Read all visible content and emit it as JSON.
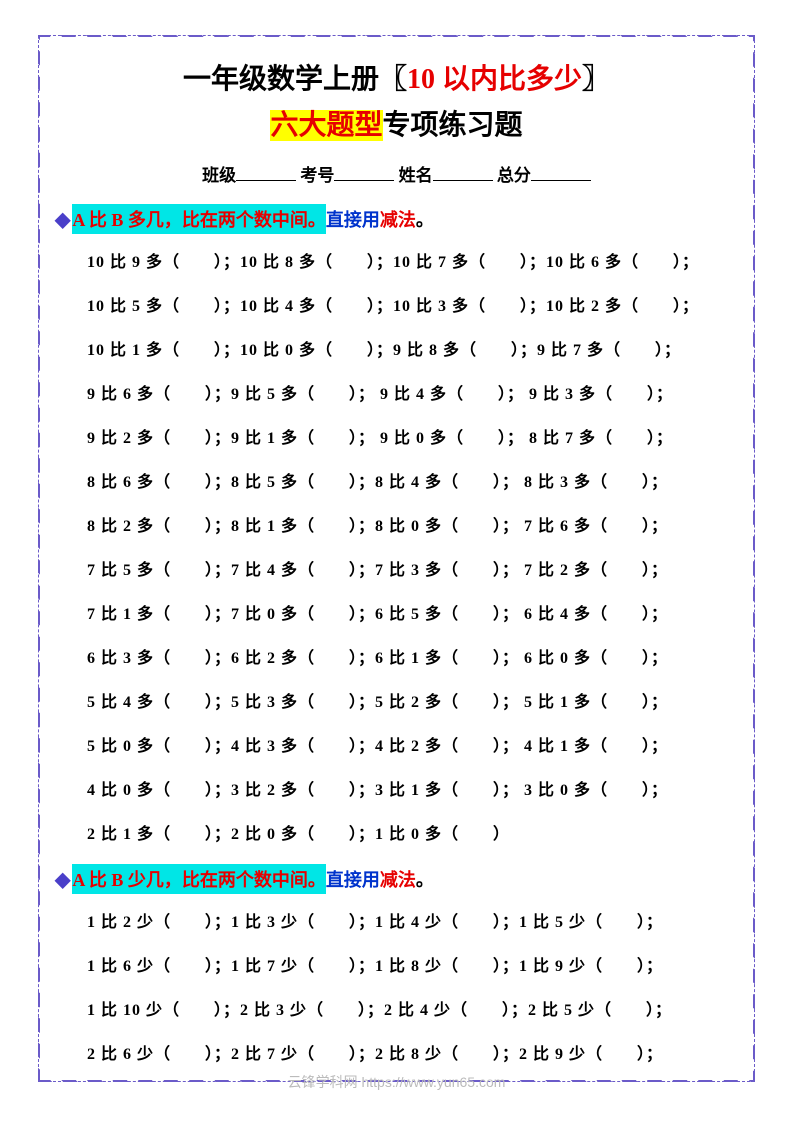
{
  "title": {
    "prefix": "一年级数学上册〖",
    "highlight_red": "10 以内比多少",
    "suffix": "〗"
  },
  "subtitle": {
    "highlight": "六大题型",
    "rest": "专项练习题"
  },
  "info": {
    "class_label": "班级",
    "exam_label": "考号",
    "name_label": "姓名",
    "score_label": "总分"
  },
  "section1": {
    "h1": "A 比 B 多几，比在两个数中间。",
    "h2": "直接用",
    "h3": "减法",
    "h4": "。",
    "rows": [
      "10 比 9 多（　　）；10 比 8 多（　　）；10 比 7 多（　　）；10 比 6 多（　　）；",
      "10 比 5 多（　　）；10 比 4 多（　　）；10 比 3 多（　　）；10 比 2 多（　　）；",
      "10 比 1 多（　　）；10 比 0 多（　　）；9 比 8 多（　　）；9 比 7 多（　　）；",
      "9 比 6 多（　　）；9 比 5 多（　　）； 9 比 4 多（　　）； 9 比 3 多（　　）；",
      "9 比 2 多（　　）；9 比 1 多（　　）； 9 比 0 多（　　）； 8 比 7 多（　　）；",
      "8 比 6 多（　　）；8 比 5 多（　　）；8 比 4 多（　　）； 8 比 3 多（　　）；",
      "8 比 2 多（　　）；8 比 1 多（　　）；8 比 0 多（　　）； 7 比 6 多（　　）；",
      "7 比 5 多（　　）；7 比 4 多（　　）；7 比 3 多（　　）； 7 比 2 多（　　）；",
      "7 比 1 多（　　）；7 比 0 多（　　）；6 比 5 多（　　）； 6 比 4 多（　　）；",
      "6 比 3 多（　　）；6 比 2 多（　　）；6 比 1 多（　　）； 6 比 0 多（　　）；",
      "5 比 4 多（　　）；5 比 3 多（　　）；5 比 2 多（　　）； 5 比 1 多（　　）；",
      "5 比 0 多（　　）；4 比 3 多（　　）；4 比 2 多（　　）； 4 比 1 多（　　）；",
      "4 比 0 多（　　）；3 比 2 多（　　）；3 比 1 多（　　）； 3 比 0 多（　　）；",
      "2 比 1 多（　　）；2 比 0 多（　　）；1 比 0 多（　　）"
    ]
  },
  "section2": {
    "h1": "A 比 B 少几，比在两个数中间。",
    "h2": "直接用",
    "h3": "减法",
    "h4": "。",
    "rows": [
      "1 比 2 少（　　）；1 比 3 少（　　）；1 比 4 少（　　）；1 比 5 少（　　）；",
      "1 比 6 少（　　）；1 比 7 少（　　）；1 比 8 少（　　）；1 比 9 少（　　）；",
      "1 比 10 少（　　）；2 比 3 少（　　）；2 比 4 少（　　）；2 比 5 少（　　）；",
      "2 比 6 少（　　）；2 比 7 少（　　）；2 比 8 少（　　）；2 比 9 少（　　）；"
    ]
  },
  "watermark": "云锋学科网 https://www.yun65.com",
  "colors": {
    "border": "#6b5bc9",
    "red": "#e60000",
    "blue": "#0033cc",
    "cyan_bg": "#00e6e6",
    "yellow_bg": "#ffff00",
    "diamond": "#4a3fc9"
  }
}
